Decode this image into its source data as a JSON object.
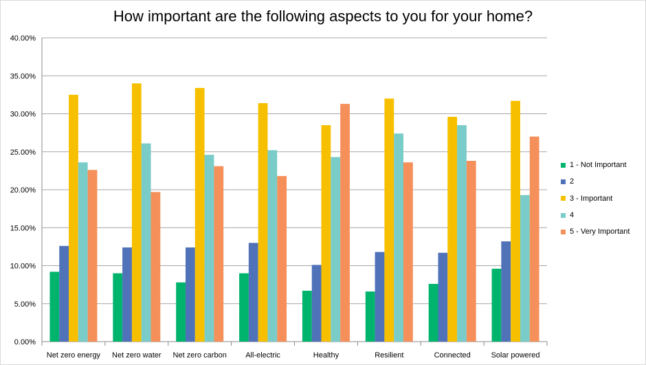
{
  "chart_data": {
    "type": "bar",
    "title": "How important are the following aspects to you for your home?",
    "categories": [
      "Net zero energy",
      "Net zero water",
      "Net zero carbon",
      "All-electric",
      "Healthy",
      "Resilient",
      "Connected",
      "Solar powered"
    ],
    "series": [
      {
        "name": "1 - Not Important",
        "color": "#00b46e",
        "values": [
          9.2,
          9.0,
          7.8,
          9.0,
          6.7,
          6.6,
          7.6,
          9.6
        ]
      },
      {
        "name": "2",
        "color": "#4f72b8",
        "values": [
          12.6,
          12.4,
          12.4,
          13.0,
          10.1,
          11.8,
          11.7,
          13.2
        ]
      },
      {
        "name": "3 - Important",
        "color": "#f6c000",
        "values": [
          32.5,
          34.0,
          33.4,
          31.4,
          28.5,
          32.0,
          29.6,
          31.7
        ]
      },
      {
        "name": "4",
        "color": "#7accc8",
        "values": [
          23.6,
          26.1,
          24.6,
          25.2,
          24.3,
          27.4,
          28.5,
          19.3
        ]
      },
      {
        "name": "5 - Very Important",
        "color": "#f5905a",
        "values": [
          22.6,
          19.7,
          23.1,
          21.8,
          31.3,
          23.6,
          23.8,
          27.0
        ]
      }
    ],
    "ylim": [
      0,
      40
    ],
    "yticks": [
      "0.00%",
      "5.00%",
      "10.00%",
      "15.00%",
      "20.00%",
      "25.00%",
      "30.00%",
      "35.00%",
      "40.00%"
    ],
    "xlabel": "",
    "ylabel": "",
    "grid": true,
    "legend_position": "right"
  }
}
